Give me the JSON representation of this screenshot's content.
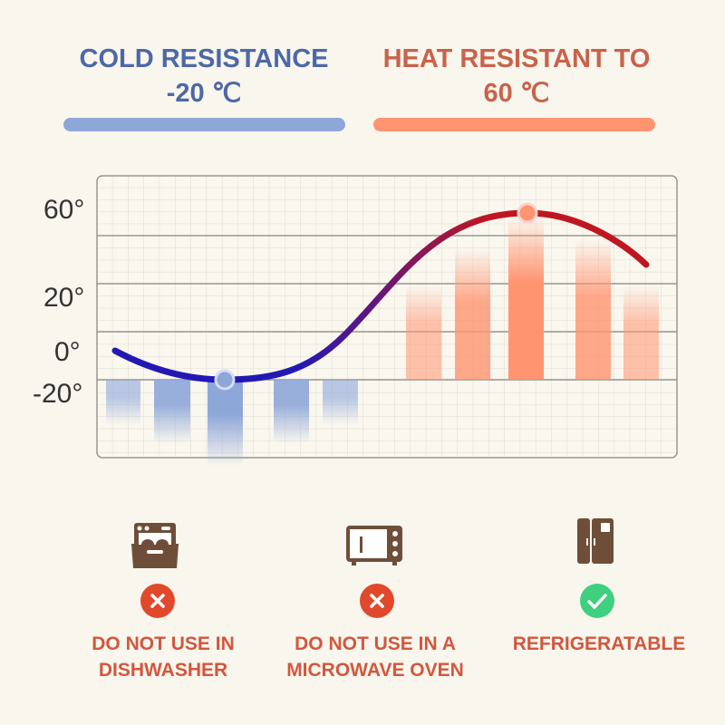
{
  "cold": {
    "title": "COLD RESISTANCE",
    "value": "-20 ℃",
    "color": "#4d68a6",
    "bar_color": "#8ea7d9"
  },
  "heat": {
    "title": "HEAT RESISTANT TO",
    "value": "60 ℃",
    "color": "#c8634a",
    "bar_color": "#ff9470"
  },
  "graph": {
    "y_labels": [
      "60°",
      "20°",
      "0°",
      "-20°"
    ]
  },
  "usage": [
    {
      "icon": "dishwasher-icon",
      "status": "cross-icon",
      "label_1": "DO NOT USE IN",
      "label_2": "DISHWASHER"
    },
    {
      "icon": "microwave-icon",
      "status": "cross-icon",
      "label_1": "DO NOT USE IN A",
      "label_2": "MICROWAVE OVEN"
    },
    {
      "icon": "refrigerator-icon",
      "status": "check-icon",
      "label_1": "REFRIGERATABLE",
      "label_2": ""
    }
  ],
  "colors": {
    "icon": "#6e4e38",
    "cross": "#e0492c",
    "check": "#3ecf7f"
  }
}
